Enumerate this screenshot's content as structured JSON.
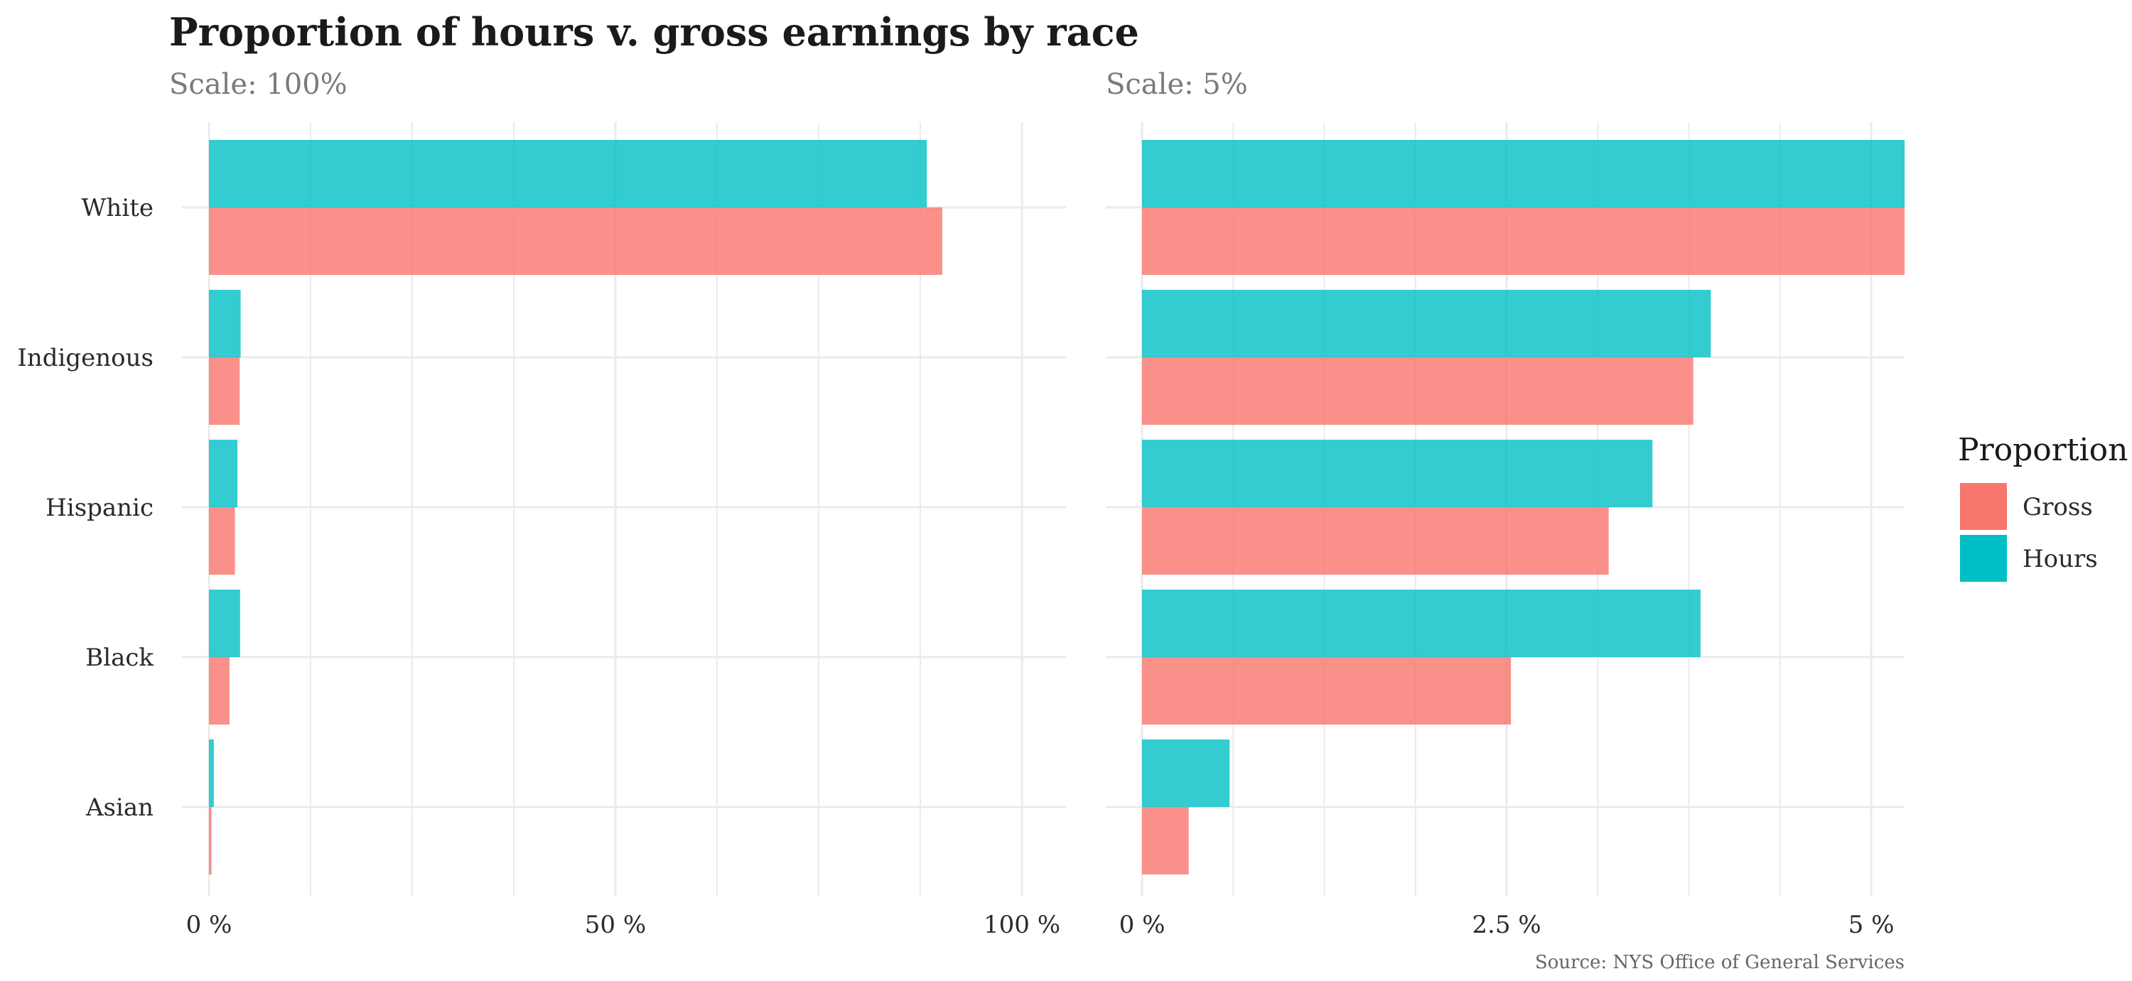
{
  "chart_data": {
    "type": "bar",
    "orientation": "horizontal",
    "title": "Proportion of hours v. gross earnings by race",
    "caption": "Source: NYS Office of General Services",
    "categories": [
      "White",
      "Indigenous",
      "Hispanic",
      "Black",
      "Asian"
    ],
    "series": [
      {
        "name": "Hours",
        "color": "#00BFC4",
        "values": [
          88.3,
          3.9,
          3.5,
          3.83,
          0.6
        ]
      },
      {
        "name": "Gross",
        "color": "#F8766D",
        "values": [
          90.2,
          3.78,
          3.2,
          2.53,
          0.32
        ]
      }
    ],
    "legend": {
      "title": "Proportion",
      "position": "right",
      "items": [
        {
          "label": "Gross",
          "color": "#F8766D"
        },
        {
          "label": "Hours",
          "color": "#00BFC4"
        }
      ]
    },
    "panels": [
      {
        "subtitle": "Scale: 100%",
        "xlim": [
          0,
          100
        ],
        "ticks": [
          {
            "value": 0,
            "label": "0 %"
          },
          {
            "value": 50,
            "label": "50 %"
          },
          {
            "value": 100,
            "label": "100 %"
          }
        ]
      },
      {
        "subtitle": "Scale: 5%",
        "xlim": [
          0,
          5
        ],
        "clipped": true,
        "ticks": [
          {
            "value": 0,
            "label": "0 %"
          },
          {
            "value": 2.5,
            "label": "2.5 %"
          },
          {
            "value": 5,
            "label": "5 %"
          }
        ]
      }
    ],
    "grid": true
  }
}
